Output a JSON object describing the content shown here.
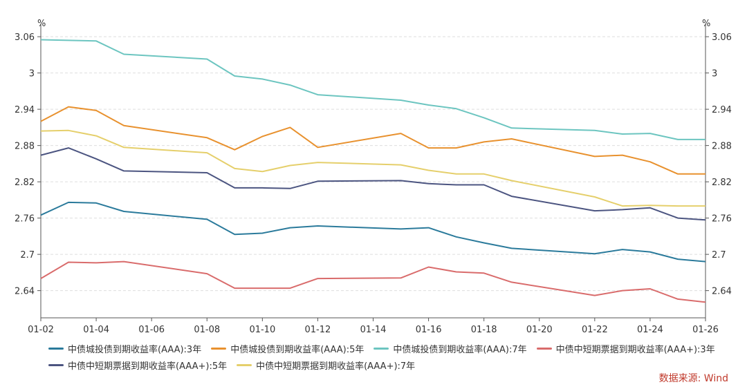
{
  "chart_data": {
    "type": "line",
    "y_unit": "%",
    "x": [
      "01-02",
      "01-03",
      "01-04",
      "01-05",
      "01-08",
      "01-09",
      "01-10",
      "01-11",
      "01-12",
      "01-15",
      "01-16",
      "01-17",
      "01-18",
      "01-19",
      "01-22",
      "01-23",
      "01-24",
      "01-25",
      "01-26"
    ],
    "x_ticks": [
      "01-02",
      "01-04",
      "01-06",
      "01-08",
      "01-10",
      "01-12",
      "01-14",
      "01-16",
      "01-18",
      "01-20",
      "01-22",
      "01-24",
      "01-26"
    ],
    "x_range": [
      "01-02",
      "01-26"
    ],
    "ylim": [
      2.595,
      3.075
    ],
    "y_ticks": [
      2.64,
      2.7,
      2.76,
      2.82,
      2.88,
      2.94,
      3,
      3.06
    ],
    "y_tick_labels": [
      "2.64",
      "2.7",
      "2.76",
      "2.82",
      "2.88",
      "2.94",
      "3",
      "3.06"
    ],
    "grid": "horizontal dashed",
    "series": [
      {
        "name": "中债城投债到期收益率(AAA):3年",
        "color": "#2a7a9b",
        "values": [
          2.765,
          2.786,
          2.785,
          2.771,
          2.758,
          2.733,
          2.735,
          2.744,
          2.747,
          2.742,
          2.744,
          2.729,
          2.719,
          2.71,
          2.701,
          2.708,
          2.704,
          2.692,
          2.688
        ]
      },
      {
        "name": "中债城投债到期收益率(AAA):5年",
        "color": "#e8912e",
        "values": [
          2.92,
          2.944,
          2.938,
          2.913,
          2.893,
          2.873,
          2.895,
          2.91,
          2.877,
          2.9,
          2.876,
          2.876,
          2.886,
          2.891,
          2.862,
          2.864,
          2.853,
          2.833,
          2.833
        ]
      },
      {
        "name": "中债城投债到期收益率(AAA):7年",
        "color": "#6cc5c0",
        "values": [
          3.055,
          3.054,
          3.053,
          3.031,
          3.023,
          2.995,
          2.99,
          2.98,
          2.964,
          2.955,
          2.947,
          2.941,
          2.926,
          2.909,
          2.905,
          2.899,
          2.9,
          2.89,
          2.89
        ]
      },
      {
        "name": "中债中短期票据到期收益率(AAA+):3年",
        "color": "#d96b6b",
        "values": [
          2.66,
          2.687,
          2.686,
          2.688,
          2.668,
          2.644,
          2.644,
          2.644,
          2.66,
          2.661,
          2.679,
          2.671,
          2.669,
          2.654,
          2.632,
          2.64,
          2.643,
          2.626,
          2.621
        ]
      },
      {
        "name": "中债中短期票据到期收益率(AAA+):5年",
        "color": "#4b5480",
        "values": [
          2.864,
          2.876,
          2.858,
          2.838,
          2.835,
          2.81,
          2.81,
          2.809,
          2.821,
          2.822,
          2.817,
          2.815,
          2.815,
          2.796,
          2.772,
          2.774,
          2.777,
          2.76,
          2.757
        ]
      },
      {
        "name": "中债中短期票据到期收益率(AAA+):7年",
        "color": "#e5cf6b",
        "values": [
          2.904,
          2.905,
          2.896,
          2.877,
          2.868,
          2.842,
          2.837,
          2.847,
          2.852,
          2.848,
          2.839,
          2.833,
          2.833,
          2.822,
          2.795,
          2.78,
          2.781,
          2.78,
          2.78
        ]
      }
    ]
  },
  "source_text": "数据来源: Wind"
}
